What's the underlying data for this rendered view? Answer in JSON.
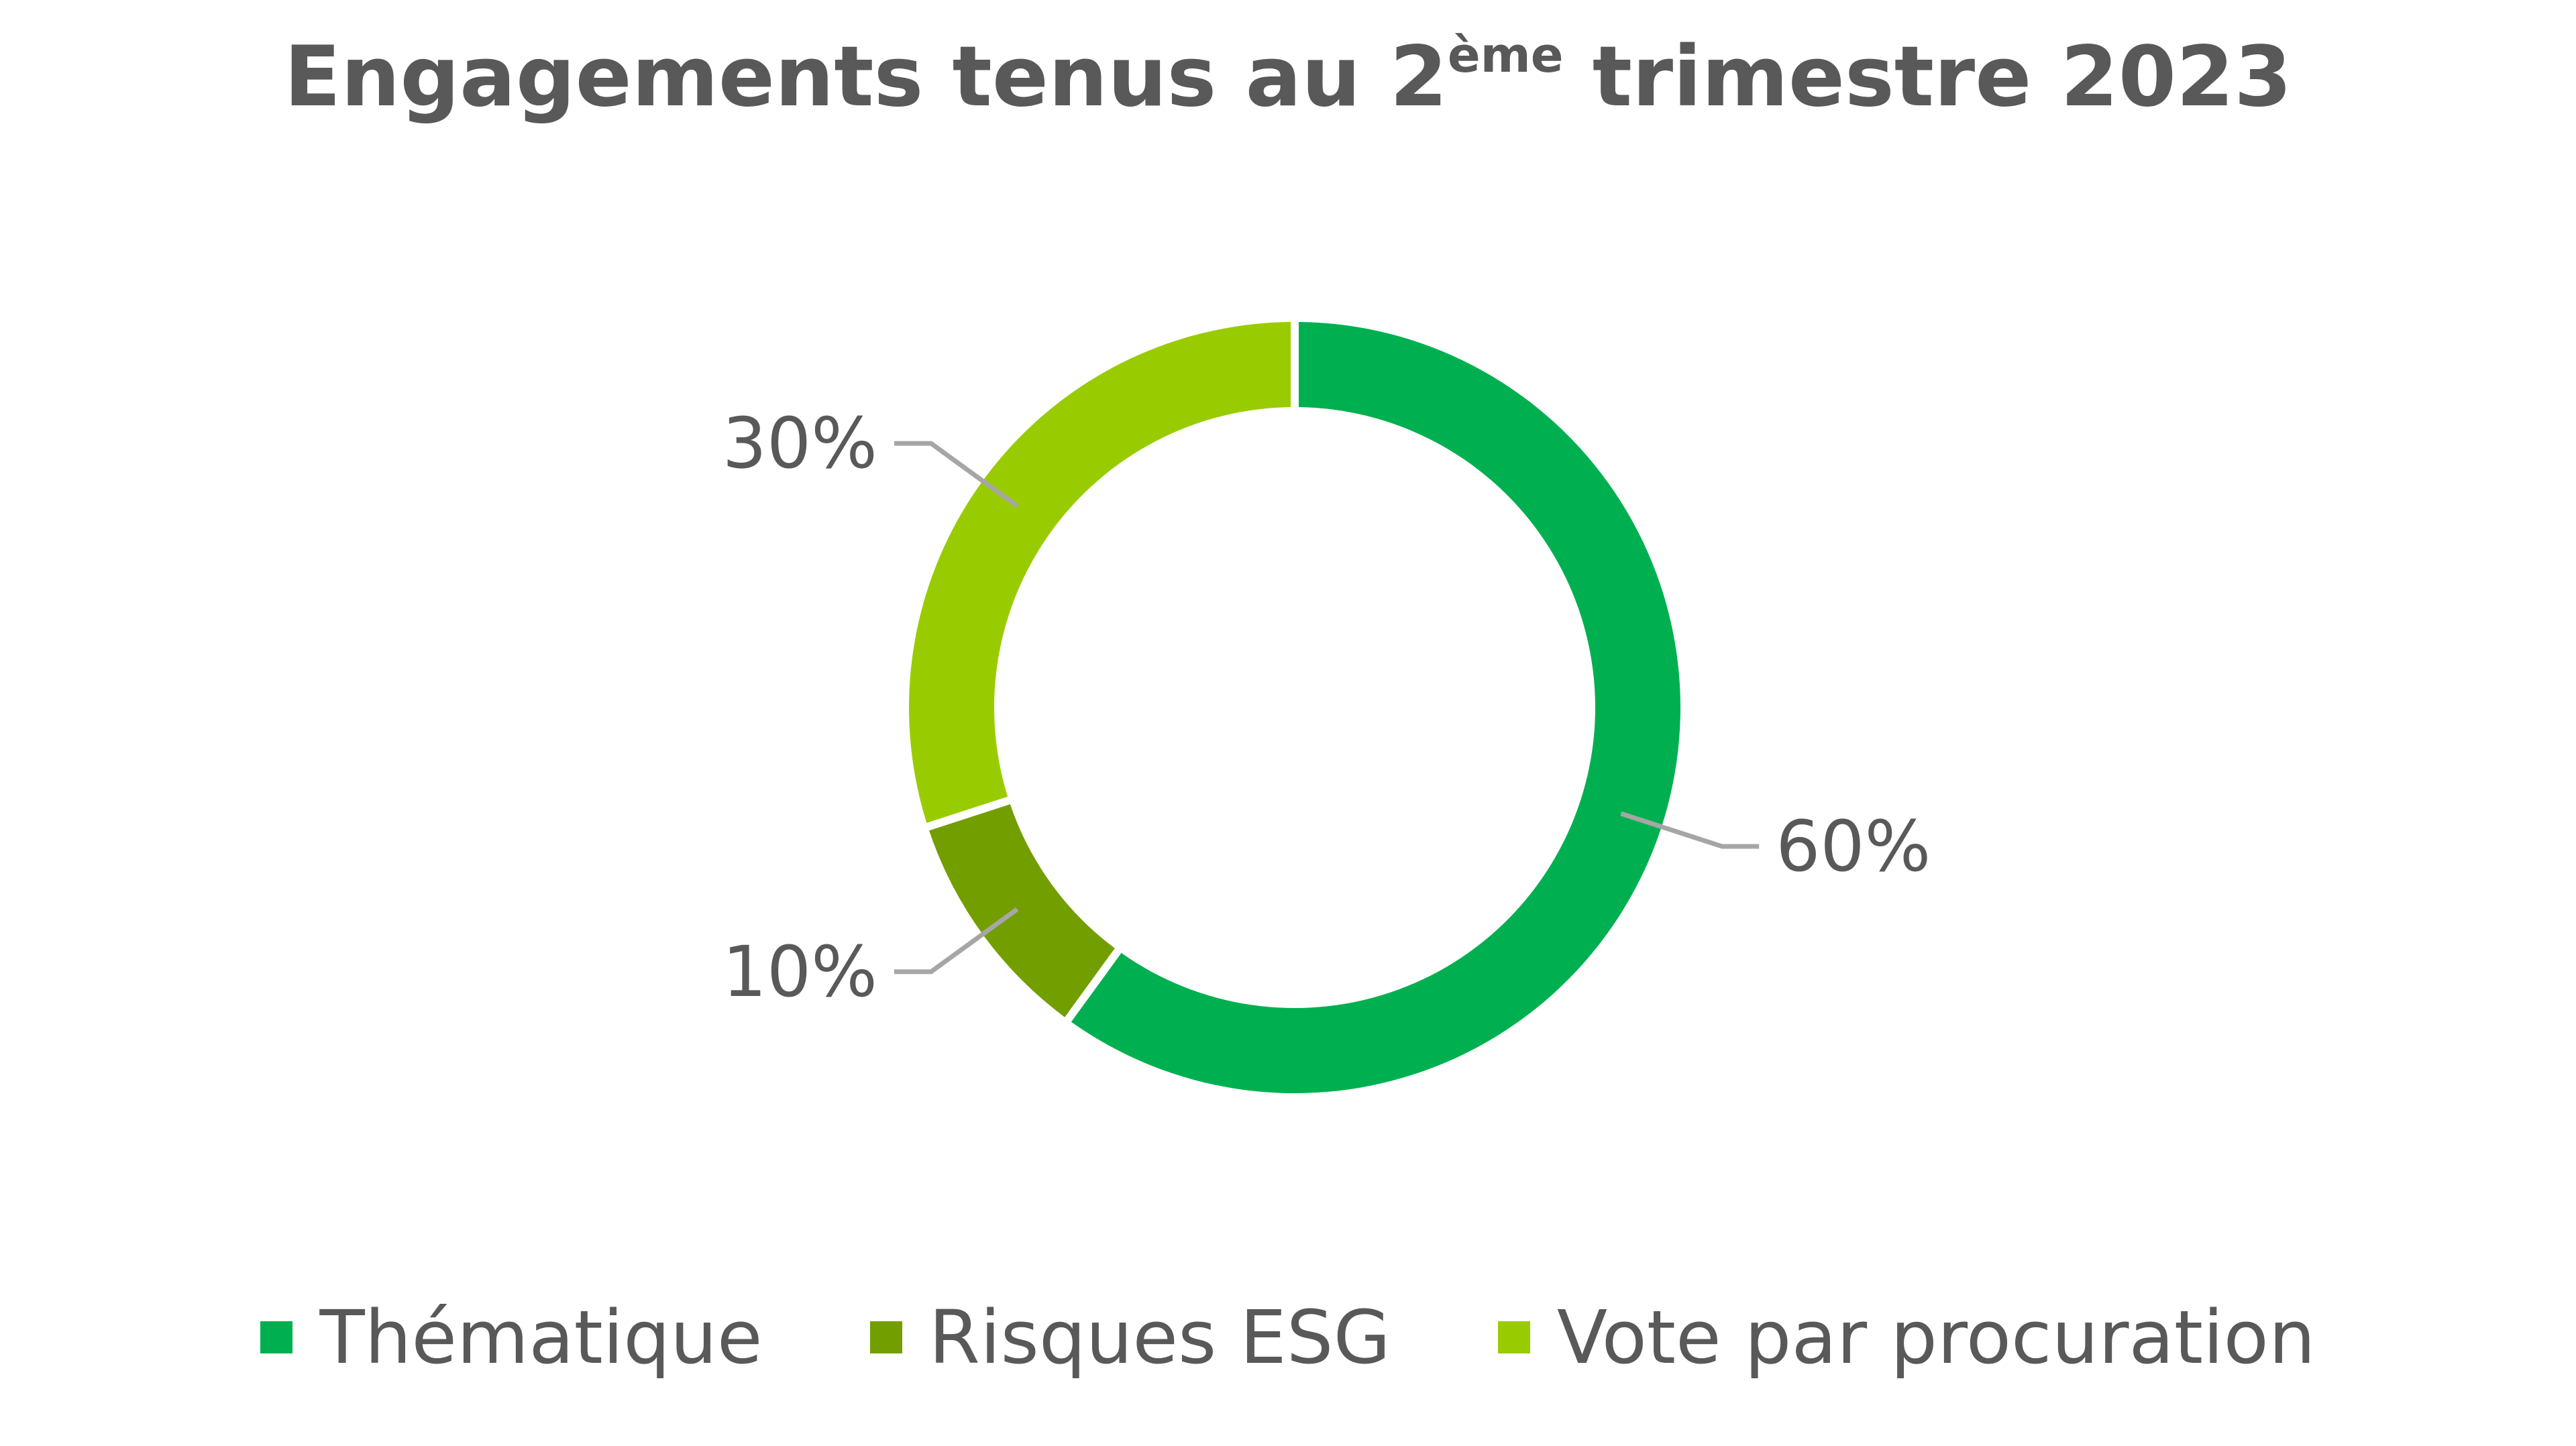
{
  "chart_data": {
    "type": "pie",
    "variant": "donut",
    "title": {
      "prefix": "Engagements tenus au 2",
      "superscript": "ème",
      "suffix": " trimestre 2023"
    },
    "categories": [
      "Thématique",
      "Risques ESG",
      "Vote par procuration"
    ],
    "values": [
      60,
      10,
      30
    ],
    "unit": "%",
    "data_labels": [
      "60%",
      "10%",
      "30%"
    ],
    "colors": [
      "#00B050",
      "#739E00",
      "#99CC00"
    ],
    "legend_position": "bottom",
    "start_angle": "12 o'clock, clockwise"
  }
}
